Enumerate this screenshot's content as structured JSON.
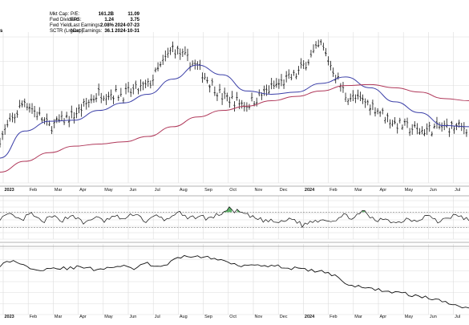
{
  "header": {
    "stats": [
      {
        "label": "Mkt Cap:",
        "value": "161.2B"
      },
      {
        "label": "Fwd Dividend",
        "value": "1.24"
      },
      {
        "label": "Fwd Yield:",
        "value": "2.08%"
      },
      {
        "label": "SCTR (LrgCap):",
        "value": "36.1"
      }
    ],
    "stats2": [
      {
        "label": "P/E:",
        "value": "11.09"
      },
      {
        "label": "EPS:",
        "value": "3.75"
      },
      {
        "label": "Last Earnings:",
        "value": "2024-07-23"
      },
      {
        "label": "Next Earnings:",
        "value": "2024-10-31"
      }
    ],
    "cut_label": "s"
  },
  "colors": {
    "price": "#111111",
    "ma_short": "#3b3fa8",
    "ma_long": "#b0385a",
    "grid": "#dcdcdc",
    "rsi_fill": "#3fa34d"
  },
  "chart_data": [
    {
      "type": "line",
      "panel": "price",
      "title": "",
      "x": [
        "2023-01",
        "2023-02",
        "2023-03",
        "2023-04",
        "2023-05",
        "2023-06",
        "2023-07",
        "2023-08",
        "2023-09",
        "2023-10",
        "2023-11",
        "2023-12",
        "2024-01",
        "2024-02",
        "2024-03",
        "2024-04",
        "2024-05",
        "2024-06",
        "2024-07",
        "2024-07-29"
      ],
      "x_tick_labels": [
        "2023",
        "Feb",
        "Mar",
        "Apr",
        "May",
        "Jun",
        "Jul",
        "Aug",
        "Sep",
        "Oct",
        "Nov",
        "Dec",
        "2024",
        "Feb",
        "Mar",
        "Apr",
        "May",
        "Jun",
        "Jul"
      ],
      "series": [
        {
          "role": "price",
          "values": [
            71,
            106,
            82,
            93,
            113,
            112,
            120,
            155,
            137,
            110,
            102,
            118,
            130,
            158,
            111,
            103,
            85,
            78,
            82,
            81
          ]
        },
        {
          "role": "ma_short",
          "values": [
            53,
            78,
            87,
            88,
            97,
            104,
            112,
            126,
            139,
            130,
            115,
            112,
            114,
            122,
            128,
            118,
            105,
            95,
            83,
            82
          ]
        },
        {
          "role": "ma_long",
          "values": [
            40,
            50,
            58,
            64,
            66,
            68,
            73,
            82,
            91,
            97,
            101,
            106,
            110,
            115,
            120,
            121,
            118,
            114,
            108,
            106
          ]
        }
      ],
      "grid": true
    },
    {
      "type": "line",
      "panel": "oscillator",
      "title": "",
      "reference_lines": [
        70,
        30
      ],
      "values": [
        55,
        62,
        48,
        66,
        44,
        58,
        50,
        63,
        40,
        57,
        47,
        59,
        52,
        68,
        45,
        60,
        49,
        72,
        51,
        61,
        53,
        64,
        78,
        70,
        58,
        50,
        46,
        43,
        55,
        36,
        47,
        52,
        49,
        61,
        56,
        72,
        45,
        55,
        41,
        53,
        49,
        63,
        44,
        58,
        61,
        48
      ],
      "grid": true
    },
    {
      "type": "line",
      "panel": "relative",
      "title": "",
      "values": [
        60,
        66,
        58,
        55,
        57,
        56,
        58,
        55,
        57,
        59,
        56,
        62,
        57,
        66,
        72,
        70,
        68,
        64,
        60,
        61,
        60,
        58,
        56,
        54,
        52,
        48,
        36,
        33,
        31,
        28,
        26,
        23,
        20,
        16,
        12,
        8
      ],
      "grid": true
    }
  ]
}
